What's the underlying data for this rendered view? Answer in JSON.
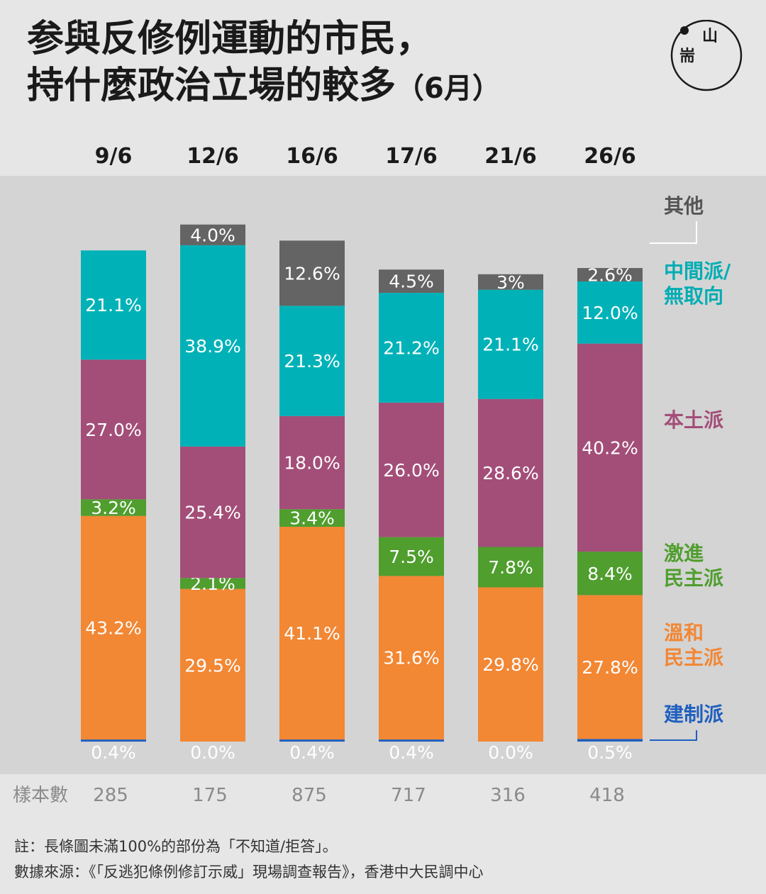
{
  "title": {
    "line1": "参與反修例運動的市民，",
    "line2": "持什麼政治立場的較多",
    "line2_suffix": "（6月）"
  },
  "chart_data": {
    "type": "bar",
    "stacked": true,
    "categories": [
      "9/6",
      "12/6",
      "16/6",
      "17/6",
      "21/6",
      "26/6"
    ],
    "series": [
      {
        "name": "建制派",
        "color": "#1f5fbf",
        "values": [
          0.4,
          0.0,
          0.4,
          0.4,
          0.0,
          0.5
        ],
        "labels": [
          "0.4%",
          "0.0%",
          "0.4%",
          "0.4%",
          "0.0%",
          "0.5%"
        ]
      },
      {
        "name": "溫和民主派",
        "color": "#f28734",
        "values": [
          43.2,
          29.5,
          41.1,
          31.6,
          29.8,
          27.8
        ],
        "labels": [
          "43.2%",
          "29.5%",
          "41.1%",
          "31.6%",
          "29.8%",
          "27.8%"
        ]
      },
      {
        "name": "激進民主派",
        "color": "#4f9e2e",
        "values": [
          3.2,
          2.1,
          3.4,
          7.5,
          7.8,
          8.4
        ],
        "labels": [
          "3.2%",
          "2.1%",
          "3.4%",
          "7.5%",
          "7.8%",
          "8.4%"
        ]
      },
      {
        "name": "本土派",
        "color": "#a34e78",
        "values": [
          27.0,
          25.4,
          18.0,
          26.0,
          28.6,
          40.2
        ],
        "labels": [
          "27.0%",
          "25.4%",
          "18.0%",
          "26.0%",
          "28.6%",
          "40.2%"
        ]
      },
      {
        "name": "中間派/無取向",
        "color": "#00b2b8",
        "values": [
          21.1,
          38.9,
          21.3,
          21.2,
          21.1,
          12.0
        ],
        "labels": [
          "21.1%",
          "38.9%",
          "21.3%",
          "21.2%",
          "21.1%",
          "12.0%"
        ]
      },
      {
        "name": "其他",
        "color": "#646464",
        "values": [
          0,
          4.0,
          12.6,
          4.5,
          3.0,
          2.6
        ],
        "labels": [
          "",
          "4.0%",
          "12.6%",
          "4.5%",
          "3%",
          "2.6%"
        ]
      }
    ],
    "legend": [
      {
        "lines": [
          "其他"
        ],
        "color": "#555555"
      },
      {
        "lines": [
          "中間派/",
          "無取向"
        ],
        "color": "#00adb3"
      },
      {
        "lines": [
          "本土派"
        ],
        "color": "#a34e78"
      },
      {
        "lines": [
          "激進",
          "民主派"
        ],
        "color": "#4f9e2e"
      },
      {
        "lines": [
          "溫和",
          "民主派"
        ],
        "color": "#f28734"
      },
      {
        "lines": [
          "建制派"
        ],
        "color": "#1f5fbf"
      }
    ],
    "ylim": [
      0,
      100
    ],
    "sample_label": "樣本數",
    "sample_sizes": [
      "285",
      "175",
      "875",
      "717",
      "316",
      "418"
    ]
  },
  "notes": {
    "line1": "註：長條圖未滿100%的部份為「不知道/拒答」。",
    "line2": "數據來源：《「反逃犯條例修訂示威」現場調查報告》，香港中大民調中心"
  },
  "logo": {
    "text1": "山",
    "text2": "耑"
  },
  "colors": {
    "plot_bg": "#d4d4d4",
    "page_bg": "#e6e6e6"
  }
}
